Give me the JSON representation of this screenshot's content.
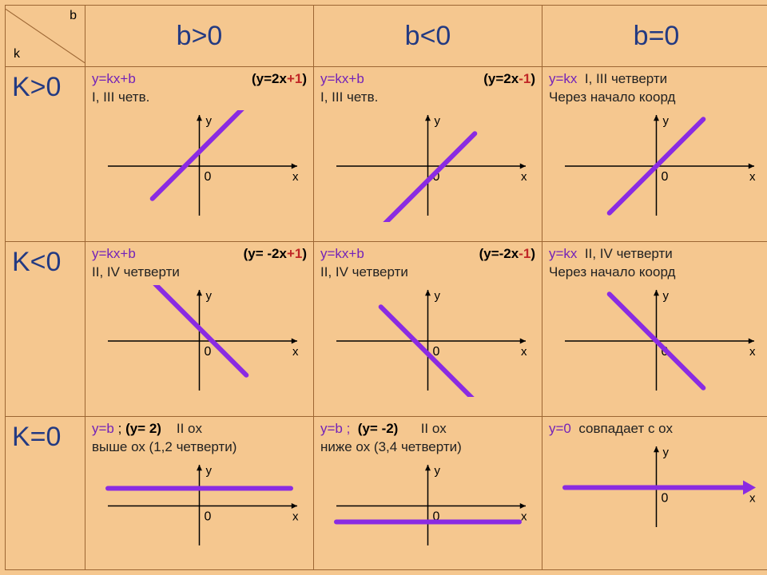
{
  "colors": {
    "background": "#f5c78f",
    "border": "#9c6633",
    "header_text": "#233a82",
    "formula": "#7322b8",
    "axis": "#000000",
    "line": "#8a2be2",
    "red": "#c02626",
    "text": "#222222"
  },
  "table": {
    "corner": {
      "top": "b",
      "bottom": "k"
    },
    "col_headers": [
      "b>0",
      "b<0",
      "b=0"
    ],
    "row_headers": [
      "K>0",
      "K<0",
      "K=0"
    ],
    "cells": {
      "r0c0": {
        "formula_prefix": "y=kx+b",
        "example_pre": "(y=2x",
        "example_op": "+1",
        "example_post": ")",
        "note": "I, III четв.",
        "graph": {
          "type": "line",
          "slope": 1,
          "intercept": 18,
          "line_color": "#8a2be2",
          "line_width": 6
        }
      },
      "r0c1": {
        "formula_prefix": "y=kx+b",
        "example_pre": "(y=2x",
        "example_op": "-1",
        "example_post": ")",
        "note": "I, III четв.",
        "graph": {
          "type": "line",
          "slope": 1,
          "intercept": -18,
          "line_color": "#8a2be2",
          "line_width": 6
        }
      },
      "r0c2": {
        "formula_prefix": "y=kx",
        "right_note": "I, III  четверти",
        "note": "Через начало коорд",
        "graph": {
          "type": "line",
          "slope": 1,
          "intercept": 0,
          "line_color": "#8a2be2",
          "line_width": 6
        }
      },
      "r1c0": {
        "formula_prefix": "y=kx+b",
        "example_pre": "(y= -2x",
        "example_op": "+1",
        "example_post": ")",
        "note": "II, IV четверти",
        "graph": {
          "type": "line",
          "slope": -1,
          "intercept": 16,
          "line_color": "#8a2be2",
          "line_width": 6
        }
      },
      "r1c1": {
        "formula_prefix": "y=kx+b",
        "example_pre": "(y=-2x",
        "example_op": "-1",
        "example_post": ")",
        "note": "II, IV четверти",
        "graph": {
          "type": "line",
          "slope": -1,
          "intercept": -16,
          "line_color": "#8a2be2",
          "line_width": 6
        }
      },
      "r1c2": {
        "formula_prefix": "y=kx",
        "right_note": "II, IV  четверти",
        "note": "Через начало коорд",
        "graph": {
          "type": "line",
          "slope": -1,
          "intercept": 0,
          "line_color": "#8a2be2",
          "line_width": 6
        }
      },
      "r2c0": {
        "formula_prefix": "y=b",
        "mid": " ; ",
        "example": "(y= 2)",
        "after": "II ox",
        "note": "выше  ох (1,2 четверти)",
        "graph": {
          "type": "hline",
          "y": 22,
          "line_color": "#8a2be2",
          "line_width": 6
        }
      },
      "r2c1": {
        "formula_prefix": "y=b ;",
        "example": "(y= -2)",
        "after": "II ox",
        "note": "ниже  ох (3,4 четверти)",
        "graph": {
          "type": "hline",
          "y": -20,
          "line_color": "#8a2be2",
          "line_width": 6
        }
      },
      "r2c2": {
        "formula_prefix": "y=0",
        "note": "совпадает с ох",
        "graph": {
          "type": "axis-arrow",
          "line_color": "#8a2be2",
          "line_width": 6
        }
      }
    },
    "axis_labels": {
      "x": "x",
      "y": "y",
      "origin": "0"
    }
  }
}
